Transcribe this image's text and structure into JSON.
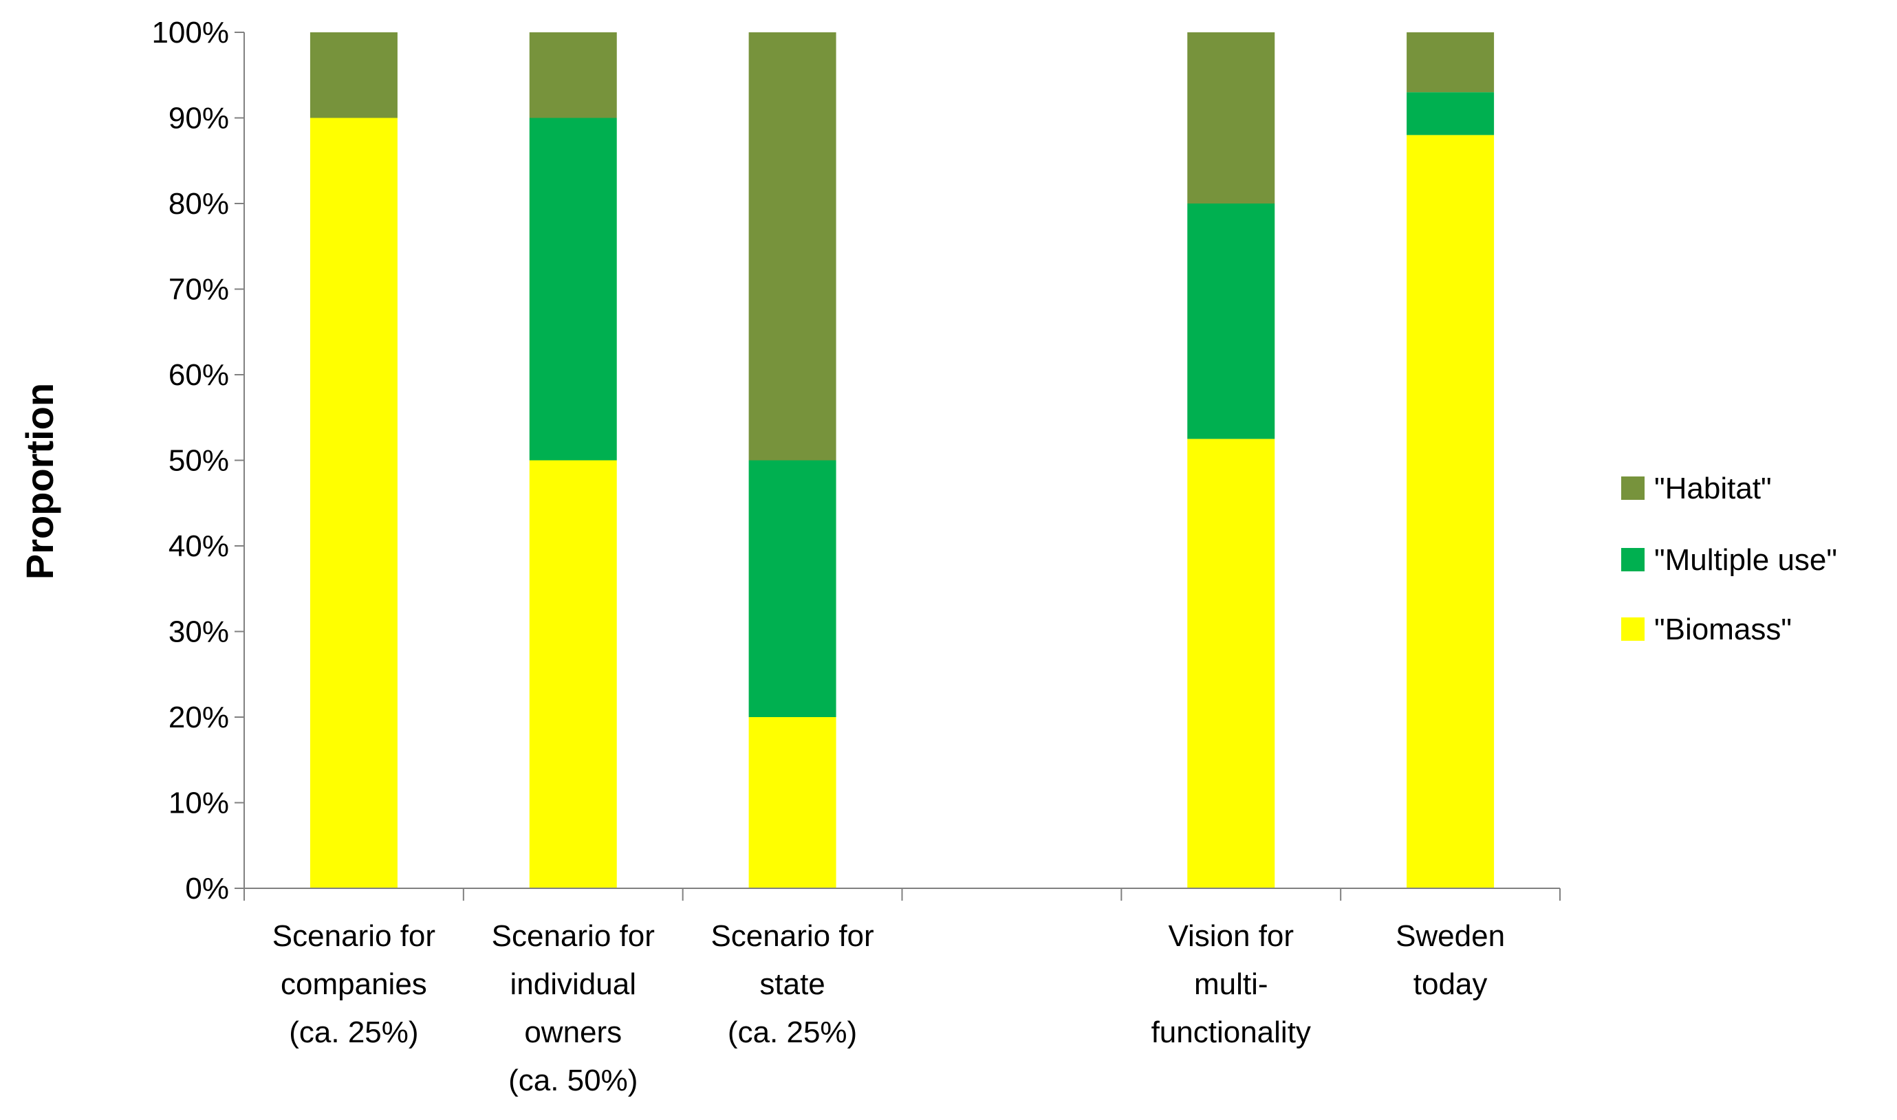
{
  "chart_data": {
    "type": "bar",
    "stacked": true,
    "title": "",
    "xlabel": "",
    "ylabel": "Proportion",
    "ylim": [
      0,
      100
    ],
    "y_ticks": [
      "0%",
      "10%",
      "20%",
      "30%",
      "40%",
      "50%",
      "60%",
      "70%",
      "80%",
      "90%",
      "100%"
    ],
    "grid": false,
    "legend_position": "right",
    "categories": [
      [
        "Scenario for",
        "companies",
        "(ca. 25%)"
      ],
      [
        "Scenario for",
        "individual",
        "owners",
        "(ca. 50%)"
      ],
      [
        "Scenario for",
        "state",
        "(ca. 25%)"
      ],
      [],
      [
        "Vision for",
        "multi-",
        "functionality"
      ],
      [
        "Sweden",
        "today"
      ]
    ],
    "series": [
      {
        "name": "\"Biomass\"",
        "color": "#FFFF00",
        "values": [
          90,
          50,
          20,
          null,
          52.5,
          88
        ]
      },
      {
        "name": "\"Multiple use\"",
        "color": "#00B050",
        "values": [
          0,
          40,
          30,
          null,
          27.5,
          5
        ]
      },
      {
        "name": "\"Habitat\"",
        "color": "#77933C",
        "values": [
          10,
          10,
          50,
          null,
          20,
          7
        ]
      }
    ],
    "legend_order": [
      "\"Habitat\"",
      "\"Multiple use\"",
      "\"Biomass\""
    ]
  }
}
